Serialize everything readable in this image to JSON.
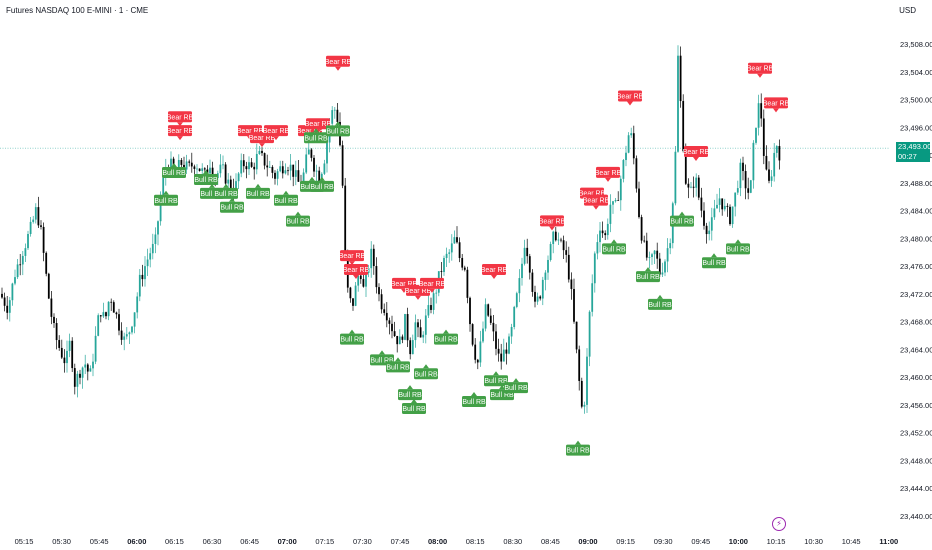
{
  "header": {
    "title": "Futures NASDAQ 100 E-MINI · 1 · CME",
    "currency": "USD"
  },
  "price_badge": {
    "price": "23,493.00",
    "countdown": "00:27"
  },
  "colors": {
    "up": "#26a69a",
    "down": "#000000",
    "bear": "#f23645",
    "bull": "#43a047",
    "price_line": "#26a69a"
  },
  "chart_data": {
    "type": "candlestick",
    "y_ticks": [
      "23,508.00",
      "23,504.00",
      "23,500.00",
      "23,496.00",
      "23,492.00",
      "23,488.00",
      "23,484.00",
      "23,480.00",
      "23,476.00",
      "23,472.00",
      "23,468.00",
      "23,464.00",
      "23,460.00",
      "23,456.00",
      "23,452.00",
      "23,448.00",
      "23,444.00",
      "23,440.00"
    ],
    "x_ticks": [
      {
        "label": "05:15",
        "bold": false
      },
      {
        "label": "05:30",
        "bold": false
      },
      {
        "label": "05:45",
        "bold": false
      },
      {
        "label": "06:00",
        "bold": true
      },
      {
        "label": "06:15",
        "bold": false
      },
      {
        "label": "06:30",
        "bold": false
      },
      {
        "label": "06:45",
        "bold": false
      },
      {
        "label": "07:00",
        "bold": true
      },
      {
        "label": "07:15",
        "bold": false
      },
      {
        "label": "07:30",
        "bold": false
      },
      {
        "label": "07:45",
        "bold": false
      },
      {
        "label": "08:00",
        "bold": true
      },
      {
        "label": "08:15",
        "bold": false
      },
      {
        "label": "08:30",
        "bold": false
      },
      {
        "label": "08:45",
        "bold": false
      },
      {
        "label": "09:00",
        "bold": true
      },
      {
        "label": "09:15",
        "bold": false
      },
      {
        "label": "09:30",
        "bold": false
      },
      {
        "label": "09:45",
        "bold": false
      },
      {
        "label": "10:00",
        "bold": true
      },
      {
        "label": "10:15",
        "bold": false
      },
      {
        "label": "10:30",
        "bold": false
      },
      {
        "label": "10:45",
        "bold": false
      },
      {
        "label": "11:00",
        "bold": true
      }
    ],
    "y_range": [
      23440,
      23508
    ],
    "last_price": 23493.0,
    "path_points": [
      [
        0,
        23472
      ],
      [
        8,
        23470
      ],
      [
        15,
        23475
      ],
      [
        22,
        23478
      ],
      [
        30,
        23481
      ],
      [
        36,
        23484
      ],
      [
        40,
        23482
      ],
      [
        45,
        23476
      ],
      [
        50,
        23470
      ],
      [
        55,
        23466
      ],
      [
        60,
        23464
      ],
      [
        66,
        23462
      ],
      [
        70,
        23465
      ],
      [
        75,
        23459
      ],
      [
        80,
        23461
      ],
      [
        85,
        23462
      ],
      [
        90,
        23460
      ],
      [
        96,
        23466
      ],
      [
        100,
        23470
      ],
      [
        105,
        23468
      ],
      [
        110,
        23472
      ],
      [
        118,
        23468
      ],
      [
        125,
        23465
      ],
      [
        130,
        23467
      ],
      [
        135,
        23470
      ],
      [
        140,
        23474
      ],
      [
        145,
        23476
      ],
      [
        150,
        23478
      ],
      [
        155,
        23479
      ],
      [
        160,
        23485
      ],
      [
        165,
        23490
      ],
      [
        170,
        23491
      ],
      [
        175,
        23488
      ],
      [
        180,
        23491
      ],
      [
        188,
        23490
      ],
      [
        195,
        23491
      ],
      [
        200,
        23490
      ],
      [
        205,
        23489
      ],
      [
        210,
        23491
      ],
      [
        215,
        23489
      ],
      [
        222,
        23490
      ],
      [
        228,
        23488
      ],
      [
        235,
        23487
      ],
      [
        240,
        23490
      ],
      [
        245,
        23491
      ],
      [
        252,
        23490
      ],
      [
        258,
        23492
      ],
      [
        265,
        23491
      ],
      [
        270,
        23490
      ],
      [
        275,
        23489
      ],
      [
        280,
        23490
      ],
      [
        286,
        23491
      ],
      [
        292,
        23490
      ],
      [
        298,
        23488
      ],
      [
        302,
        23488
      ],
      [
        306,
        23491
      ],
      [
        310,
        23493
      ],
      [
        315,
        23490
      ],
      [
        320,
        23489
      ],
      [
        325,
        23492
      ],
      [
        330,
        23497
      ],
      [
        334,
        23499
      ],
      [
        338,
        23497
      ],
      [
        342,
        23490
      ],
      [
        345,
        23478
      ],
      [
        348,
        23472
      ],
      [
        352,
        23470
      ],
      [
        356,
        23473
      ],
      [
        360,
        23476
      ],
      [
        364,
        23472
      ],
      [
        368,
        23476
      ],
      [
        372,
        23478
      ],
      [
        376,
        23474
      ],
      [
        380,
        23471
      ],
      [
        385,
        23470
      ],
      [
        390,
        23468
      ],
      [
        395,
        23466
      ],
      [
        400,
        23465
      ],
      [
        405,
        23468
      ],
      [
        410,
        23464
      ],
      [
        415,
        23468
      ],
      [
        420,
        23465
      ],
      [
        425,
        23468
      ],
      [
        430,
        23470
      ],
      [
        435,
        23472
      ],
      [
        440,
        23475
      ],
      [
        445,
        23477
      ],
      [
        450,
        23478
      ],
      [
        455,
        23480
      ],
      [
        460,
        23477
      ],
      [
        465,
        23476
      ],
      [
        470,
        23468
      ],
      [
        474,
        23464
      ],
      [
        478,
        23462
      ],
      [
        482,
        23466
      ],
      [
        486,
        23470
      ],
      [
        490,
        23468
      ],
      [
        495,
        23465
      ],
      [
        500,
        23462
      ],
      [
        505,
        23464
      ],
      [
        510,
        23465
      ],
      [
        515,
        23470
      ],
      [
        520,
        23474
      ],
      [
        525,
        23480
      ],
      [
        530,
        23476
      ],
      [
        535,
        23470
      ],
      [
        540,
        23472
      ],
      [
        545,
        23476
      ],
      [
        550,
        23478
      ],
      [
        555,
        23481
      ],
      [
        560,
        23479
      ],
      [
        565,
        23478
      ],
      [
        570,
        23474
      ],
      [
        575,
        23466
      ],
      [
        580,
        23458
      ],
      [
        583,
        23454
      ],
      [
        586,
        23460
      ],
      [
        590,
        23470
      ],
      [
        595,
        23478
      ],
      [
        600,
        23482
      ],
      [
        605,
        23480
      ],
      [
        610,
        23485
      ],
      [
        615,
        23484
      ],
      [
        620,
        23488
      ],
      [
        625,
        23492
      ],
      [
        630,
        23496
      ],
      [
        635,
        23490
      ],
      [
        640,
        23482
      ],
      [
        645,
        23478
      ],
      [
        650,
        23476
      ],
      [
        655,
        23478
      ],
      [
        660,
        23475
      ],
      [
        665,
        23477
      ],
      [
        670,
        23480
      ],
      [
        675,
        23490
      ],
      [
        678,
        23506
      ],
      [
        682,
        23496
      ],
      [
        686,
        23488
      ],
      [
        690,
        23486
      ],
      [
        695,
        23489
      ],
      [
        700,
        23485
      ],
      [
        705,
        23482
      ],
      [
        710,
        23481
      ],
      [
        715,
        23484
      ],
      [
        720,
        23486
      ],
      [
        725,
        23484
      ],
      [
        730,
        23483
      ],
      [
        735,
        23486
      ],
      [
        740,
        23490
      ],
      [
        745,
        23488
      ],
      [
        750,
        23486
      ],
      [
        755,
        23496
      ],
      [
        760,
        23500
      ],
      [
        764,
        23492
      ],
      [
        768,
        23487
      ],
      [
        772,
        23490
      ],
      [
        776,
        23494
      ],
      [
        780,
        23492
      ]
    ],
    "bear_labels": [
      {
        "x": 180,
        "y": 23496,
        "text": "Bear RB"
      },
      {
        "x": 180,
        "y": 23494,
        "text": "Bear RB"
      },
      {
        "x": 250,
        "y": 23494,
        "text": "Bear RB"
      },
      {
        "x": 262,
        "y": 23493,
        "text": "Bear RB"
      },
      {
        "x": 276,
        "y": 23494,
        "text": "Bear RB"
      },
      {
        "x": 310,
        "y": 23494,
        "text": "Bear RB"
      },
      {
        "x": 318,
        "y": 23495,
        "text": "Bear RB"
      },
      {
        "x": 338,
        "y": 23504,
        "text": "Bear RB"
      },
      {
        "x": 352,
        "y": 23476,
        "text": "Bear RB"
      },
      {
        "x": 356,
        "y": 23474,
        "text": "Bear RB"
      },
      {
        "x": 404,
        "y": 23472,
        "text": "Bear RB"
      },
      {
        "x": 418,
        "y": 23471,
        "text": "Bear RB"
      },
      {
        "x": 432,
        "y": 23472,
        "text": "Bear RB"
      },
      {
        "x": 494,
        "y": 23474,
        "text": "Bear RB"
      },
      {
        "x": 552,
        "y": 23481,
        "text": "Bear RB"
      },
      {
        "x": 592,
        "y": 23485,
        "text": "Bear RB"
      },
      {
        "x": 596,
        "y": 23484,
        "text": "Bear RB"
      },
      {
        "x": 608,
        "y": 23488,
        "text": "Bear RB"
      },
      {
        "x": 630,
        "y": 23499,
        "text": "Bear RB"
      },
      {
        "x": 696,
        "y": 23491,
        "text": "Bear RB"
      },
      {
        "x": 760,
        "y": 23503,
        "text": "Bear RB"
      },
      {
        "x": 776,
        "y": 23498,
        "text": "Bear RB"
      }
    ],
    "bull_labels": [
      {
        "x": 166,
        "y": 23487,
        "text": "Bull RB"
      },
      {
        "x": 174,
        "y": 23491,
        "text": "Bull RB"
      },
      {
        "x": 206,
        "y": 23490,
        "text": "Bull RB"
      },
      {
        "x": 212,
        "y": 23488,
        "text": "Bull RB"
      },
      {
        "x": 226,
        "y": 23488,
        "text": "Bull RB"
      },
      {
        "x": 232,
        "y": 23486,
        "text": "Bull RB"
      },
      {
        "x": 258,
        "y": 23488,
        "text": "Bull RB"
      },
      {
        "x": 286,
        "y": 23487,
        "text": "Bull RB"
      },
      {
        "x": 298,
        "y": 23484,
        "text": "Bull RB"
      },
      {
        "x": 312,
        "y": 23489,
        "text": "Bull RB"
      },
      {
        "x": 322,
        "y": 23489,
        "text": "Bull RB"
      },
      {
        "x": 316,
        "y": 23496,
        "text": "Bull RB"
      },
      {
        "x": 338,
        "y": 23497,
        "text": "Bull RB"
      },
      {
        "x": 352,
        "y": 23467,
        "text": "Bull RB"
      },
      {
        "x": 382,
        "y": 23464,
        "text": "Bull RB"
      },
      {
        "x": 398,
        "y": 23463,
        "text": "Bull RB"
      },
      {
        "x": 410,
        "y": 23459,
        "text": "Bull RB"
      },
      {
        "x": 414,
        "y": 23457,
        "text": "Bull RB"
      },
      {
        "x": 426,
        "y": 23462,
        "text": "Bull RB"
      },
      {
        "x": 446,
        "y": 23467,
        "text": "Bull RB"
      },
      {
        "x": 474,
        "y": 23458,
        "text": "Bull RB"
      },
      {
        "x": 496,
        "y": 23461,
        "text": "Bull RB"
      },
      {
        "x": 502,
        "y": 23459,
        "text": "Bull RB"
      },
      {
        "x": 516,
        "y": 23460,
        "text": "Bull RB"
      },
      {
        "x": 578,
        "y": 23451,
        "text": "Bull RB"
      },
      {
        "x": 614,
        "y": 23480,
        "text": "Bull RB"
      },
      {
        "x": 648,
        "y": 23476,
        "text": "Bull RB"
      },
      {
        "x": 660,
        "y": 23472,
        "text": "Bull RB"
      },
      {
        "x": 682,
        "y": 23484,
        "text": "Bull RB"
      },
      {
        "x": 714,
        "y": 23478,
        "text": "Bull RB"
      },
      {
        "x": 738,
        "y": 23480,
        "text": "Bull RB"
      }
    ]
  }
}
